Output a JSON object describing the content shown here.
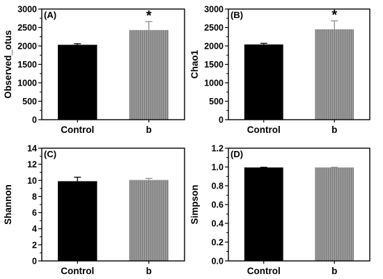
{
  "chart_data": [
    {
      "type": "bar",
      "panel_label": "(A)",
      "categories": [
        "Control",
        "b"
      ],
      "values": [
        2030,
        2430
      ],
      "errors": [
        30,
        230
      ],
      "significance": [
        "",
        "*"
      ],
      "bar_colors": [
        "#000000",
        "#8c8c8c"
      ],
      "ylabel": "Observed_otus",
      "xlabel": "",
      "ylim": [
        0,
        3000
      ],
      "yticks": [
        0,
        500,
        1000,
        1500,
        2000,
        2500,
        3000
      ],
      "ytick_labels": [
        "0",
        "500",
        "1000",
        "1500",
        "2000",
        "2500",
        "3000"
      ]
    },
    {
      "type": "bar",
      "panel_label": "(B)",
      "categories": [
        "Control",
        "b"
      ],
      "values": [
        2040,
        2450
      ],
      "errors": [
        30,
        230
      ],
      "significance": [
        "",
        "*"
      ],
      "bar_colors": [
        "#000000",
        "#8c8c8c"
      ],
      "ylabel": "Chao1",
      "xlabel": "",
      "ylim": [
        0,
        3000
      ],
      "yticks": [
        0,
        500,
        1000,
        1500,
        2000,
        2500,
        3000
      ],
      "ytick_labels": [
        "0",
        "500",
        "1000",
        "1500",
        "2000",
        "2500",
        "3000"
      ]
    },
    {
      "type": "bar",
      "panel_label": "(C)",
      "categories": [
        "Control",
        "b"
      ],
      "values": [
        9.9,
        10.05
      ],
      "errors": [
        0.5,
        0.2
      ],
      "significance": [
        "",
        ""
      ],
      "bar_colors": [
        "#000000",
        "#8c8c8c"
      ],
      "ylabel": "Shannon",
      "xlabel": "",
      "ylim": [
        0,
        14
      ],
      "yticks": [
        0,
        2,
        4,
        6,
        8,
        10,
        12,
        14
      ],
      "ytick_labels": [
        "0",
        "2",
        "4",
        "6",
        "8",
        "10",
        "12",
        "14"
      ]
    },
    {
      "type": "bar",
      "panel_label": "(D)",
      "categories": [
        "Control",
        "b"
      ],
      "values": [
        0.995,
        0.995
      ],
      "errors": [
        0.002,
        0.002
      ],
      "significance": [
        "",
        ""
      ],
      "bar_colors": [
        "#000000",
        "#8c8c8c"
      ],
      "ylabel": "Simpson",
      "xlabel": "",
      "ylim": [
        0,
        1.2
      ],
      "yticks": [
        0,
        0.2,
        0.4,
        0.6,
        0.8,
        1.0,
        1.2
      ],
      "ytick_labels": [
        "0.0",
        "0.2",
        "0.4",
        "0.6",
        "0.8",
        "1.0",
        "1.2"
      ]
    }
  ]
}
